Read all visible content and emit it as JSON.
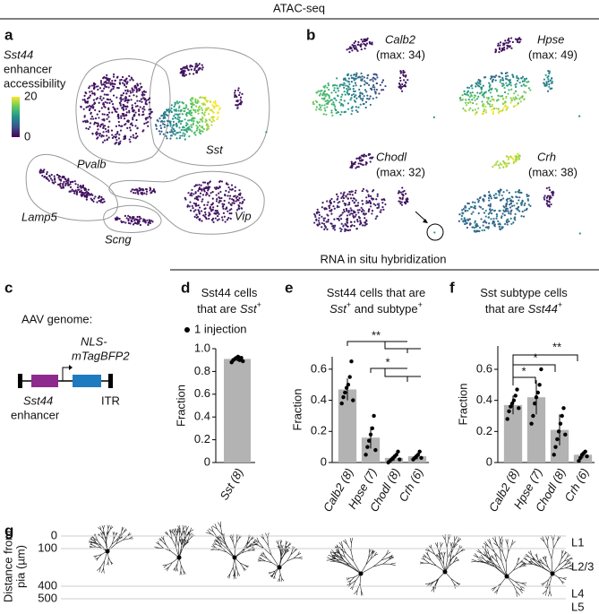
{
  "header": {
    "atac": "ATAC-seq",
    "rna": "RNA in situ hybridization"
  },
  "panel_a": {
    "label": "a",
    "legend": [
      "Sst44",
      "enhancer",
      "accessibility"
    ],
    "colorbar_ticks": [
      20,
      0
    ],
    "clusters": [
      "Pvalb",
      "Sst",
      "Lamp5",
      "Scng",
      "Vip"
    ]
  },
  "panel_b": {
    "label": "b",
    "maps": [
      {
        "gene": "Calb2",
        "max": "(max: 34)"
      },
      {
        "gene": "Hpse",
        "max": "(max: 49)"
      },
      {
        "gene": "Chodl",
        "max": "(max: 32)"
      },
      {
        "gene": "Crh",
        "max": "(max: 38)"
      }
    ]
  },
  "panel_c": {
    "label": "c",
    "title": "AAV genome:",
    "fluor": [
      "NLS-",
      "mTagBFP2"
    ],
    "enhancer": [
      "Sst44",
      "enhancer"
    ],
    "itr": "ITR"
  },
  "chart_data": [
    {
      "type": "bar",
      "label": "d",
      "title": [
        "Sst44 cells",
        "that are ",
        "Sst",
        "+"
      ],
      "legend": "1 injection",
      "ylabel": "Fraction",
      "color": "#b3b3b3",
      "categories": [
        "Sst (8)"
      ],
      "values": [
        0.91
      ],
      "errors": [
        0.02
      ],
      "points": [
        [
          0.88,
          0.9,
          0.91,
          0.92,
          0.93,
          0.9,
          0.92,
          0.89
        ]
      ],
      "ylim": [
        0,
        1
      ],
      "yticks": [
        0,
        0.2,
        0.4,
        0.6,
        0.8,
        {
          "value": 1,
          "label": "1.0"
        }
      ]
    },
    {
      "type": "bar",
      "label": "e",
      "title": [
        "Sst44 cells that are",
        "Sst",
        "+",
        " and subtype",
        "+"
      ],
      "ylabel": "Fraction",
      "color": "#b3b3b3",
      "categories": [
        "Calb2 (8)",
        "Hpse (7)",
        "Chodl (8)",
        "Crh (6)"
      ],
      "values": [
        0.47,
        0.16,
        0.03,
        0.04
      ],
      "errors": [
        0.07,
        0.07,
        0.02,
        0.02
      ],
      "points": [
        [
          0.38,
          0.42,
          0.45,
          0.48,
          0.5,
          0.55,
          0.65,
          0.4
        ],
        [
          0.05,
          0.1,
          0.14,
          0.18,
          0.22,
          0.3,
          0.08
        ],
        [
          0,
          0.01,
          0.02,
          0.03,
          0.04,
          0.05,
          0.07,
          0.02
        ],
        [
          0.02,
          0.03,
          0.04,
          0.05,
          0.07,
          0.03
        ]
      ],
      "significance": [
        "**",
        "*"
      ],
      "ylim": [
        0,
        0.68
      ],
      "yticks": [
        0,
        0.2,
        0.4,
        0.6
      ]
    },
    {
      "type": "bar",
      "label": "f",
      "title": [
        "Sst subtype cells",
        "that are ",
        "Sst44",
        "+"
      ],
      "ylabel": "Fraction",
      "color": "#b3b3b3",
      "categories": [
        "Calb2 (8)",
        "Hpse (7)",
        "Chodl (8)",
        "Crh (6)"
      ],
      "values": [
        0.37,
        0.42,
        0.21,
        0.05
      ],
      "errors": [
        0.06,
        0.11,
        0.1,
        0.02
      ],
      "points": [
        [
          0.28,
          0.33,
          0.36,
          0.38,
          0.4,
          0.43,
          0.47,
          0.35
        ],
        [
          0.25,
          0.3,
          0.38,
          0.42,
          0.45,
          0.5,
          0.6
        ],
        [
          0.05,
          0.1,
          0.15,
          0.2,
          0.25,
          0.3,
          0.35,
          0.18
        ],
        [
          0.01,
          0.03,
          0.05,
          0.06,
          0.07,
          0.04
        ]
      ],
      "significance": [
        "**",
        "*",
        "*"
      ],
      "ylim": [
        0,
        0.75
      ],
      "yticks": [
        0,
        0.2,
        0.4,
        0.6
      ]
    }
  ],
  "panel_g": {
    "label": "g",
    "ylabel": [
      "Distance from",
      "pia (µm)"
    ],
    "ylim": [
      0,
      500
    ],
    "yticks": [
      0,
      100,
      400,
      500
    ],
    "layers": [
      "L1",
      "L2/3",
      "L4",
      "L5"
    ]
  }
}
